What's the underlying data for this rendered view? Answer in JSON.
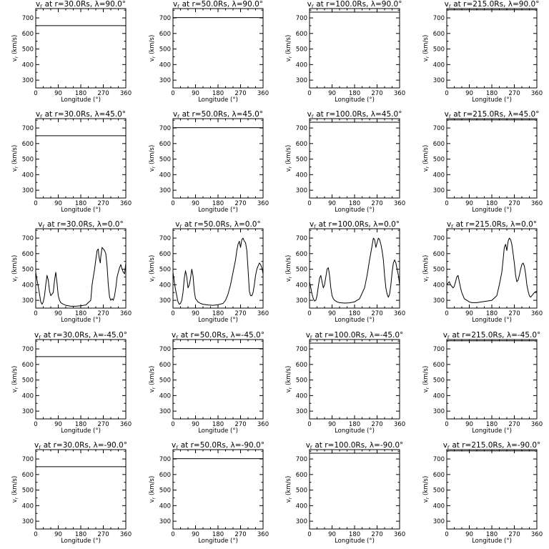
{
  "figure": {
    "xlabel": "Longitude (°)",
    "ylabel": "v_r (km/s)",
    "xticks": [
      "0",
      "90",
      "180",
      "270",
      "360"
    ],
    "yticks": [
      "300",
      "400",
      "500",
      "600",
      "700"
    ]
  },
  "chart_data": [
    {
      "type": "line",
      "title": "v_r at r=30.0Rs, λ=90.0°",
      "xlim": [
        0,
        360
      ],
      "ylim": [
        250,
        760
      ],
      "x": [
        0,
        360
      ],
      "y": [
        650,
        650
      ]
    },
    {
      "type": "line",
      "title": "v_r at r=50.0Rs, λ=90.0°",
      "xlim": [
        0,
        360
      ],
      "ylim": [
        250,
        760
      ],
      "x": [
        0,
        360
      ],
      "y": [
        702,
        702
      ]
    },
    {
      "type": "line",
      "title": "v_r at r=100.0Rs, λ=90.0°",
      "xlim": [
        0,
        360
      ],
      "ylim": [
        250,
        760
      ],
      "x": [
        0,
        360
      ],
      "y": [
        737,
        737
      ]
    },
    {
      "type": "line",
      "title": "v_r at r=215.0Rs, λ=90.0°",
      "xlim": [
        0,
        360
      ],
      "ylim": [
        250,
        760
      ],
      "x": [
        0,
        360
      ],
      "y": [
        752,
        752
      ]
    },
    {
      "type": "line",
      "title": "v_r at r=30.0Rs, λ=45.0°",
      "xlim": [
        0,
        360
      ],
      "ylim": [
        250,
        760
      ],
      "x": [
        0,
        360
      ],
      "y": [
        650,
        650
      ]
    },
    {
      "type": "line",
      "title": "v_r at r=50.0Rs, λ=45.0°",
      "xlim": [
        0,
        360
      ],
      "ylim": [
        250,
        760
      ],
      "x": [
        0,
        360
      ],
      "y": [
        702,
        702
      ]
    },
    {
      "type": "line",
      "title": "v_r at r=100.0Rs, λ=45.0°",
      "xlim": [
        0,
        360
      ],
      "ylim": [
        250,
        760
      ],
      "x": [
        0,
        360
      ],
      "y": [
        737,
        737
      ]
    },
    {
      "type": "line",
      "title": "v_r at r=215.0Rs, λ=45.0°",
      "xlim": [
        0,
        360
      ],
      "ylim": [
        250,
        760
      ],
      "x": [
        0,
        360
      ],
      "y": [
        752,
        752
      ]
    },
    {
      "type": "line",
      "title": "v_r at r=30.0Rs, λ=0.0°",
      "xlim": [
        0,
        360
      ],
      "ylim": [
        250,
        760
      ],
      "x": [
        0,
        5,
        10,
        15,
        20,
        25,
        30,
        35,
        40,
        45,
        50,
        55,
        60,
        65,
        70,
        75,
        80,
        85,
        90,
        95,
        100,
        110,
        120,
        140,
        160,
        180,
        200,
        220,
        225,
        230,
        235,
        240,
        245,
        250,
        252,
        255,
        258,
        260,
        265,
        270,
        275,
        280,
        285,
        290,
        295,
        300,
        305,
        310,
        315,
        320,
        325,
        330,
        335,
        340,
        345,
        350,
        355,
        360
      ],
      "y": [
        480,
        430,
        390,
        340,
        290,
        275,
        290,
        330,
        400,
        460,
        430,
        360,
        330,
        340,
        350,
        430,
        480,
        410,
        330,
        300,
        285,
        275,
        268,
        262,
        262,
        265,
        270,
        300,
        400,
        450,
        500,
        560,
        620,
        630,
        590,
        560,
        540,
        580,
        640,
        630,
        620,
        600,
        520,
        400,
        320,
        300,
        310,
        300,
        330,
        380,
        450,
        480,
        510,
        530,
        500,
        480,
        470,
        540
      ]
    },
    {
      "type": "line",
      "title": "v_r at r=50.0Rs, λ=0.0°",
      "xlim": [
        0,
        360
      ],
      "ylim": [
        250,
        760
      ],
      "x": [
        0,
        5,
        10,
        15,
        20,
        25,
        30,
        35,
        40,
        45,
        50,
        55,
        60,
        65,
        70,
        75,
        80,
        85,
        90,
        95,
        100,
        110,
        120,
        140,
        160,
        180,
        200,
        210,
        220,
        230,
        240,
        250,
        255,
        260,
        265,
        270,
        275,
        280,
        285,
        290,
        295,
        300,
        305,
        310,
        315,
        320,
        325,
        330,
        335,
        340,
        345,
        350,
        355,
        360
      ],
      "y": [
        480,
        420,
        370,
        330,
        290,
        275,
        280,
        300,
        350,
        440,
        490,
        450,
        380,
        400,
        440,
        500,
        460,
        360,
        310,
        300,
        290,
        280,
        275,
        270,
        268,
        272,
        280,
        300,
        340,
        400,
        480,
        560,
        620,
        660,
        680,
        640,
        690,
        700,
        680,
        670,
        620,
        500,
        360,
        330,
        330,
        350,
        400,
        460,
        500,
        520,
        540,
        530,
        510,
        470
      ]
    },
    {
      "type": "line",
      "title": "v_r at r=100.0Rs, λ=0.0°",
      "xlim": [
        0,
        360
      ],
      "ylim": [
        250,
        760
      ],
      "x": [
        0,
        5,
        10,
        15,
        20,
        25,
        30,
        35,
        40,
        45,
        50,
        55,
        60,
        65,
        70,
        75,
        80,
        85,
        90,
        95,
        100,
        110,
        120,
        140,
        160,
        180,
        200,
        220,
        230,
        240,
        250,
        255,
        260,
        265,
        270,
        275,
        280,
        285,
        290,
        295,
        300,
        305,
        310,
        315,
        320,
        325,
        330,
        335,
        340,
        345,
        350,
        355,
        360
      ],
      "y": [
        420,
        380,
        340,
        310,
        295,
        300,
        330,
        390,
        440,
        460,
        420,
        380,
        400,
        450,
        500,
        510,
        460,
        380,
        330,
        310,
        300,
        290,
        285,
        282,
        284,
        290,
        310,
        380,
        460,
        560,
        650,
        700,
        690,
        640,
        670,
        700,
        690,
        660,
        620,
        560,
        460,
        380,
        340,
        320,
        340,
        400,
        480,
        540,
        560,
        540,
        500,
        460,
        400
      ]
    },
    {
      "type": "line",
      "title": "v_r at r=215.0Rs, λ=0.0°",
      "xlim": [
        0,
        360
      ],
      "ylim": [
        250,
        760
      ],
      "x": [
        0,
        5,
        10,
        15,
        20,
        25,
        30,
        35,
        40,
        45,
        50,
        55,
        60,
        65,
        70,
        80,
        90,
        100,
        120,
        140,
        160,
        180,
        200,
        210,
        220,
        225,
        230,
        235,
        240,
        245,
        250,
        255,
        260,
        265,
        270,
        275,
        280,
        285,
        290,
        295,
        300,
        305,
        310,
        315,
        320,
        325,
        330,
        335,
        340,
        345,
        350,
        355,
        360
      ],
      "y": [
        400,
        410,
        420,
        400,
        390,
        380,
        390,
        420,
        450,
        460,
        420,
        380,
        350,
        330,
        310,
        300,
        290,
        285,
        285,
        290,
        295,
        300,
        330,
        400,
        480,
        560,
        640,
        660,
        620,
        680,
        700,
        690,
        660,
        600,
        540,
        460,
        420,
        430,
        460,
        500,
        530,
        540,
        520,
        470,
        400,
        360,
        330,
        320,
        330,
        340,
        350,
        355,
        360
      ]
    },
    {
      "type": "line",
      "title": "v_r at r=30.0Rs, λ=-45.0°",
      "xlim": [
        0,
        360
      ],
      "ylim": [
        250,
        760
      ],
      "x": [
        0,
        360
      ],
      "y": [
        650,
        650
      ]
    },
    {
      "type": "line",
      "title": "v_r at r=50.0Rs, λ=-45.0°",
      "xlim": [
        0,
        360
      ],
      "ylim": [
        250,
        760
      ],
      "x": [
        0,
        360
      ],
      "y": [
        702,
        702
      ]
    },
    {
      "type": "line",
      "title": "v_r at r=100.0Rs, λ=-45.0°",
      "xlim": [
        0,
        360
      ],
      "ylim": [
        250,
        760
      ],
      "x": [
        0,
        360
      ],
      "y": [
        737,
        737
      ]
    },
    {
      "type": "line",
      "title": "v_r at r=215.0Rs, λ=-45.0°",
      "xlim": [
        0,
        360
      ],
      "ylim": [
        250,
        760
      ],
      "x": [
        0,
        360
      ],
      "y": [
        752,
        752
      ]
    },
    {
      "type": "line",
      "title": "v_r at r=30.0Rs, λ=-90.0°",
      "xlim": [
        0,
        360
      ],
      "ylim": [
        250,
        760
      ],
      "x": [
        0,
        360
      ],
      "y": [
        650,
        650
      ]
    },
    {
      "type": "line",
      "title": "v_r at r=50.0Rs, λ=-90.0°",
      "xlim": [
        0,
        360
      ],
      "ylim": [
        250,
        760
      ],
      "x": [
        0,
        360
      ],
      "y": [
        702,
        702
      ]
    },
    {
      "type": "line",
      "title": "v_r at r=100.0Rs, λ=-90.0°",
      "xlim": [
        0,
        360
      ],
      "ylim": [
        250,
        760
      ],
      "x": [
        0,
        360
      ],
      "y": [
        737,
        737
      ]
    },
    {
      "type": "line",
      "title": "v_r at r=215.0Rs, λ=-90.0°",
      "xlim": [
        0,
        360
      ],
      "ylim": [
        250,
        760
      ],
      "x": [
        0,
        360
      ],
      "y": [
        752,
        752
      ]
    }
  ]
}
